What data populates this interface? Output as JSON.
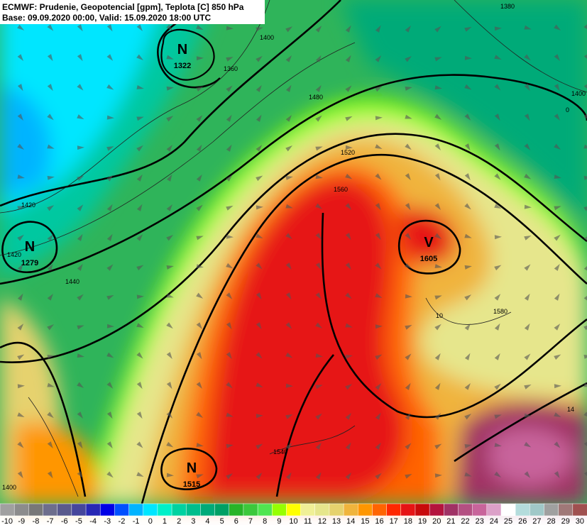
{
  "header": {
    "title": "ECMWF: Prudenie, Geopotencial [gpm], Teplota [C] 850 hPa",
    "subtitle": "Base: 09.09.2020 00:00, Valid: 15.09.2020 18:00 UTC"
  },
  "centers": [
    {
      "letter": "N",
      "value": "1322"
    },
    {
      "letter": "N",
      "value": "1279"
    },
    {
      "letter": "V",
      "value": "1605"
    },
    {
      "letter": "N",
      "value": "1515"
    }
  ],
  "contour_labels": [
    "1400",
    "1360",
    "1420",
    "1480",
    "1520",
    "1560",
    "1580",
    "1540",
    "1440",
    "1380",
    "1400",
    "1420",
    "1400",
    "0",
    "10",
    "14"
  ],
  "colorbar": {
    "labels": [
      -10,
      -9,
      -8,
      -7,
      -6,
      -5,
      -4,
      -3,
      -2,
      -1,
      0,
      1,
      2,
      3,
      4,
      5,
      6,
      7,
      8,
      9,
      10,
      11,
      12,
      13,
      14,
      15,
      16,
      17,
      18,
      19,
      20,
      21,
      22,
      23,
      24,
      25,
      26,
      27,
      28,
      29,
      30
    ],
    "colors": [
      "#a0a0a0",
      "#8c8c8c",
      "#787878",
      "#6e6e8c",
      "#5a5a8c",
      "#46469b",
      "#2828b4",
      "#0000e6",
      "#0050ff",
      "#00b4ff",
      "#00e6ff",
      "#00f0c8",
      "#00d2a0",
      "#00be8c",
      "#00aa78",
      "#00a064",
      "#28b428",
      "#3cc83c",
      "#50e650",
      "#96ff00",
      "#ffff00",
      "#f0f096",
      "#e6e68c",
      "#e6d26e",
      "#f0b43c",
      "#ff9600",
      "#ff6400",
      "#ff2800",
      "#e61414",
      "#c80a0a",
      "#b4143c",
      "#a03264",
      "#b45082",
      "#c8649b",
      "#dca0c8",
      "#ffffff",
      "#b4dcdc",
      "#a0c8c8",
      "#a0a0a0",
      "#a07878",
      "#a05050"
    ]
  }
}
